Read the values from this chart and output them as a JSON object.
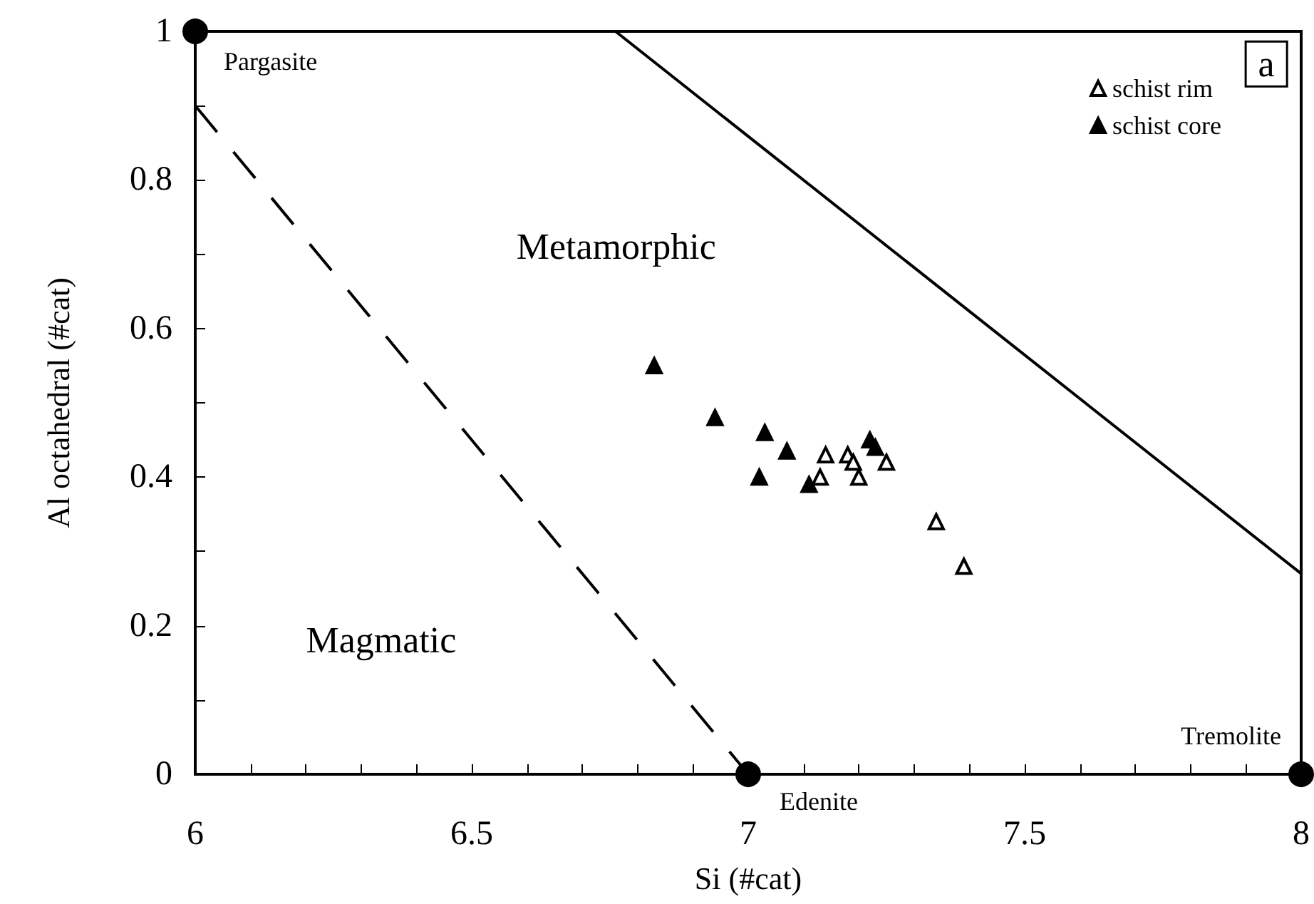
{
  "chart_data": {
    "type": "scatter",
    "xlabel": "Si (#cat)",
    "ylabel": "Al octahedral (#cat)",
    "xlim": [
      6,
      8
    ],
    "ylim": [
      0,
      1
    ],
    "xticks": [
      6,
      {
        "value": 6.1,
        "label": null
      },
      {
        "value": 6.2,
        "label": null
      },
      {
        "value": 6.3,
        "label": null
      },
      {
        "value": 6.4,
        "label": null
      },
      6.5,
      {
        "value": 6.6,
        "label": null
      },
      {
        "value": 6.7,
        "label": null
      },
      {
        "value": 6.8,
        "label": null
      },
      {
        "value": 6.9,
        "label": null
      },
      7,
      {
        "value": 7.1,
        "label": null
      },
      {
        "value": 7.2,
        "label": null
      },
      {
        "value": 7.3,
        "label": null
      },
      {
        "value": 7.4,
        "label": null
      },
      7.5,
      {
        "value": 7.6,
        "label": null
      },
      {
        "value": 7.7,
        "label": null
      },
      {
        "value": 7.8,
        "label": null
      },
      {
        "value": 7.9,
        "label": null
      },
      8
    ],
    "yticks": [
      0,
      {
        "value": 0.1,
        "label": null
      },
      0.2,
      {
        "value": 0.3,
        "label": null
      },
      0.4,
      {
        "value": 0.5,
        "label": null
      },
      0.6,
      {
        "value": 0.7,
        "label": null
      },
      0.8,
      {
        "value": 0.9,
        "label": null
      },
      1
    ],
    "grid": false,
    "legend": "top right",
    "series": [
      {
        "name": "schist rim",
        "marker": "triangle",
        "color": "#ffffff",
        "x": [
          7.14,
          7.13,
          7.18,
          7.19,
          7.2,
          7.25,
          7.34,
          7.39
        ],
        "values": [
          0.43,
          0.4,
          0.43,
          0.42,
          0.4,
          0.42,
          0.34,
          0.28
        ]
      },
      {
        "name": "schist core",
        "marker": "triangle",
        "color": "#000000",
        "x": [
          6.83,
          6.94,
          7.03,
          7.07,
          7.02,
          7.11,
          7.22,
          7.23
        ],
        "values": [
          0.55,
          0.48,
          0.46,
          0.435,
          0.4,
          0.39,
          0.45,
          0.44
        ]
      },
      {
        "type": "line",
        "marker": "none",
        "line_style": "solid",
        "color": "#000000",
        "x": [
          6.76,
          8
        ],
        "values": [
          1,
          0.27
        ]
      },
      {
        "type": "line",
        "marker": "none",
        "line_style": "dashed",
        "color": "#000000",
        "x": [
          6,
          7
        ],
        "values": [
          0.9,
          0
        ]
      },
      {
        "marker": "circle",
        "color": "#000000",
        "x": [
          6,
          7,
          8
        ],
        "values": [
          1,
          0,
          0
        ]
      }
    ],
    "annotations": [
      {
        "text": "Pargasite",
        "x": 6,
        "y": 1
      },
      {
        "text": "Edenite",
        "x": 7,
        "y": 0
      },
      {
        "text": "Tremolite",
        "x": 8,
        "y": 0
      },
      "Metamorphic",
      "Magmatic",
      "a"
    ]
  }
}
